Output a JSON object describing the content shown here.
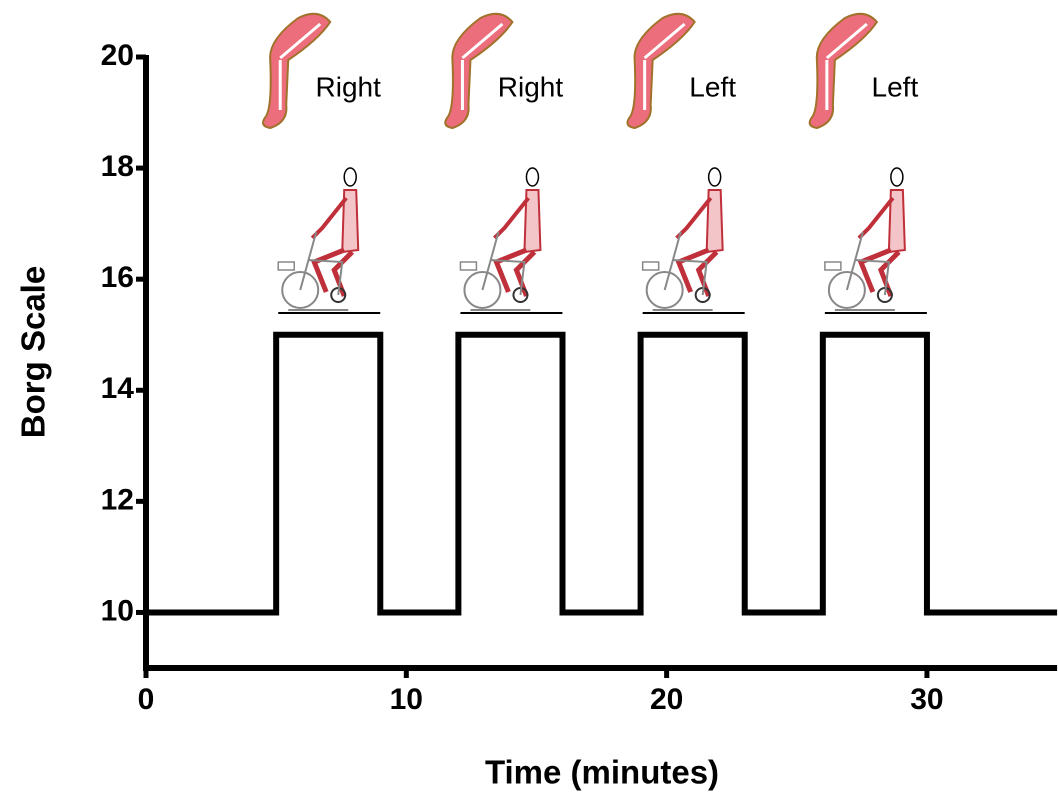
{
  "chart_data": {
    "type": "line",
    "x_label": "Time (minutes)",
    "y_label": "Borg Scale",
    "x": [
      0,
      5,
      5,
      9,
      9,
      12,
      12,
      16,
      16,
      19,
      19,
      23,
      23,
      26,
      26,
      30,
      30,
      35
    ],
    "values": [
      10,
      10,
      15,
      15,
      10,
      10,
      15,
      15,
      10,
      10,
      15,
      15,
      10,
      10,
      15,
      15,
      10,
      10
    ],
    "color": "#000000",
    "annotations": [
      "Right",
      "Right",
      "Left",
      "Left"
    ],
    "xlim": [
      0,
      35
    ],
    "xticks": [
      0,
      10,
      20,
      30
    ],
    "ylim": [
      9,
      20
    ],
    "yticks": [
      10,
      12,
      14,
      16,
      18,
      20
    ],
    "grid": false
  }
}
